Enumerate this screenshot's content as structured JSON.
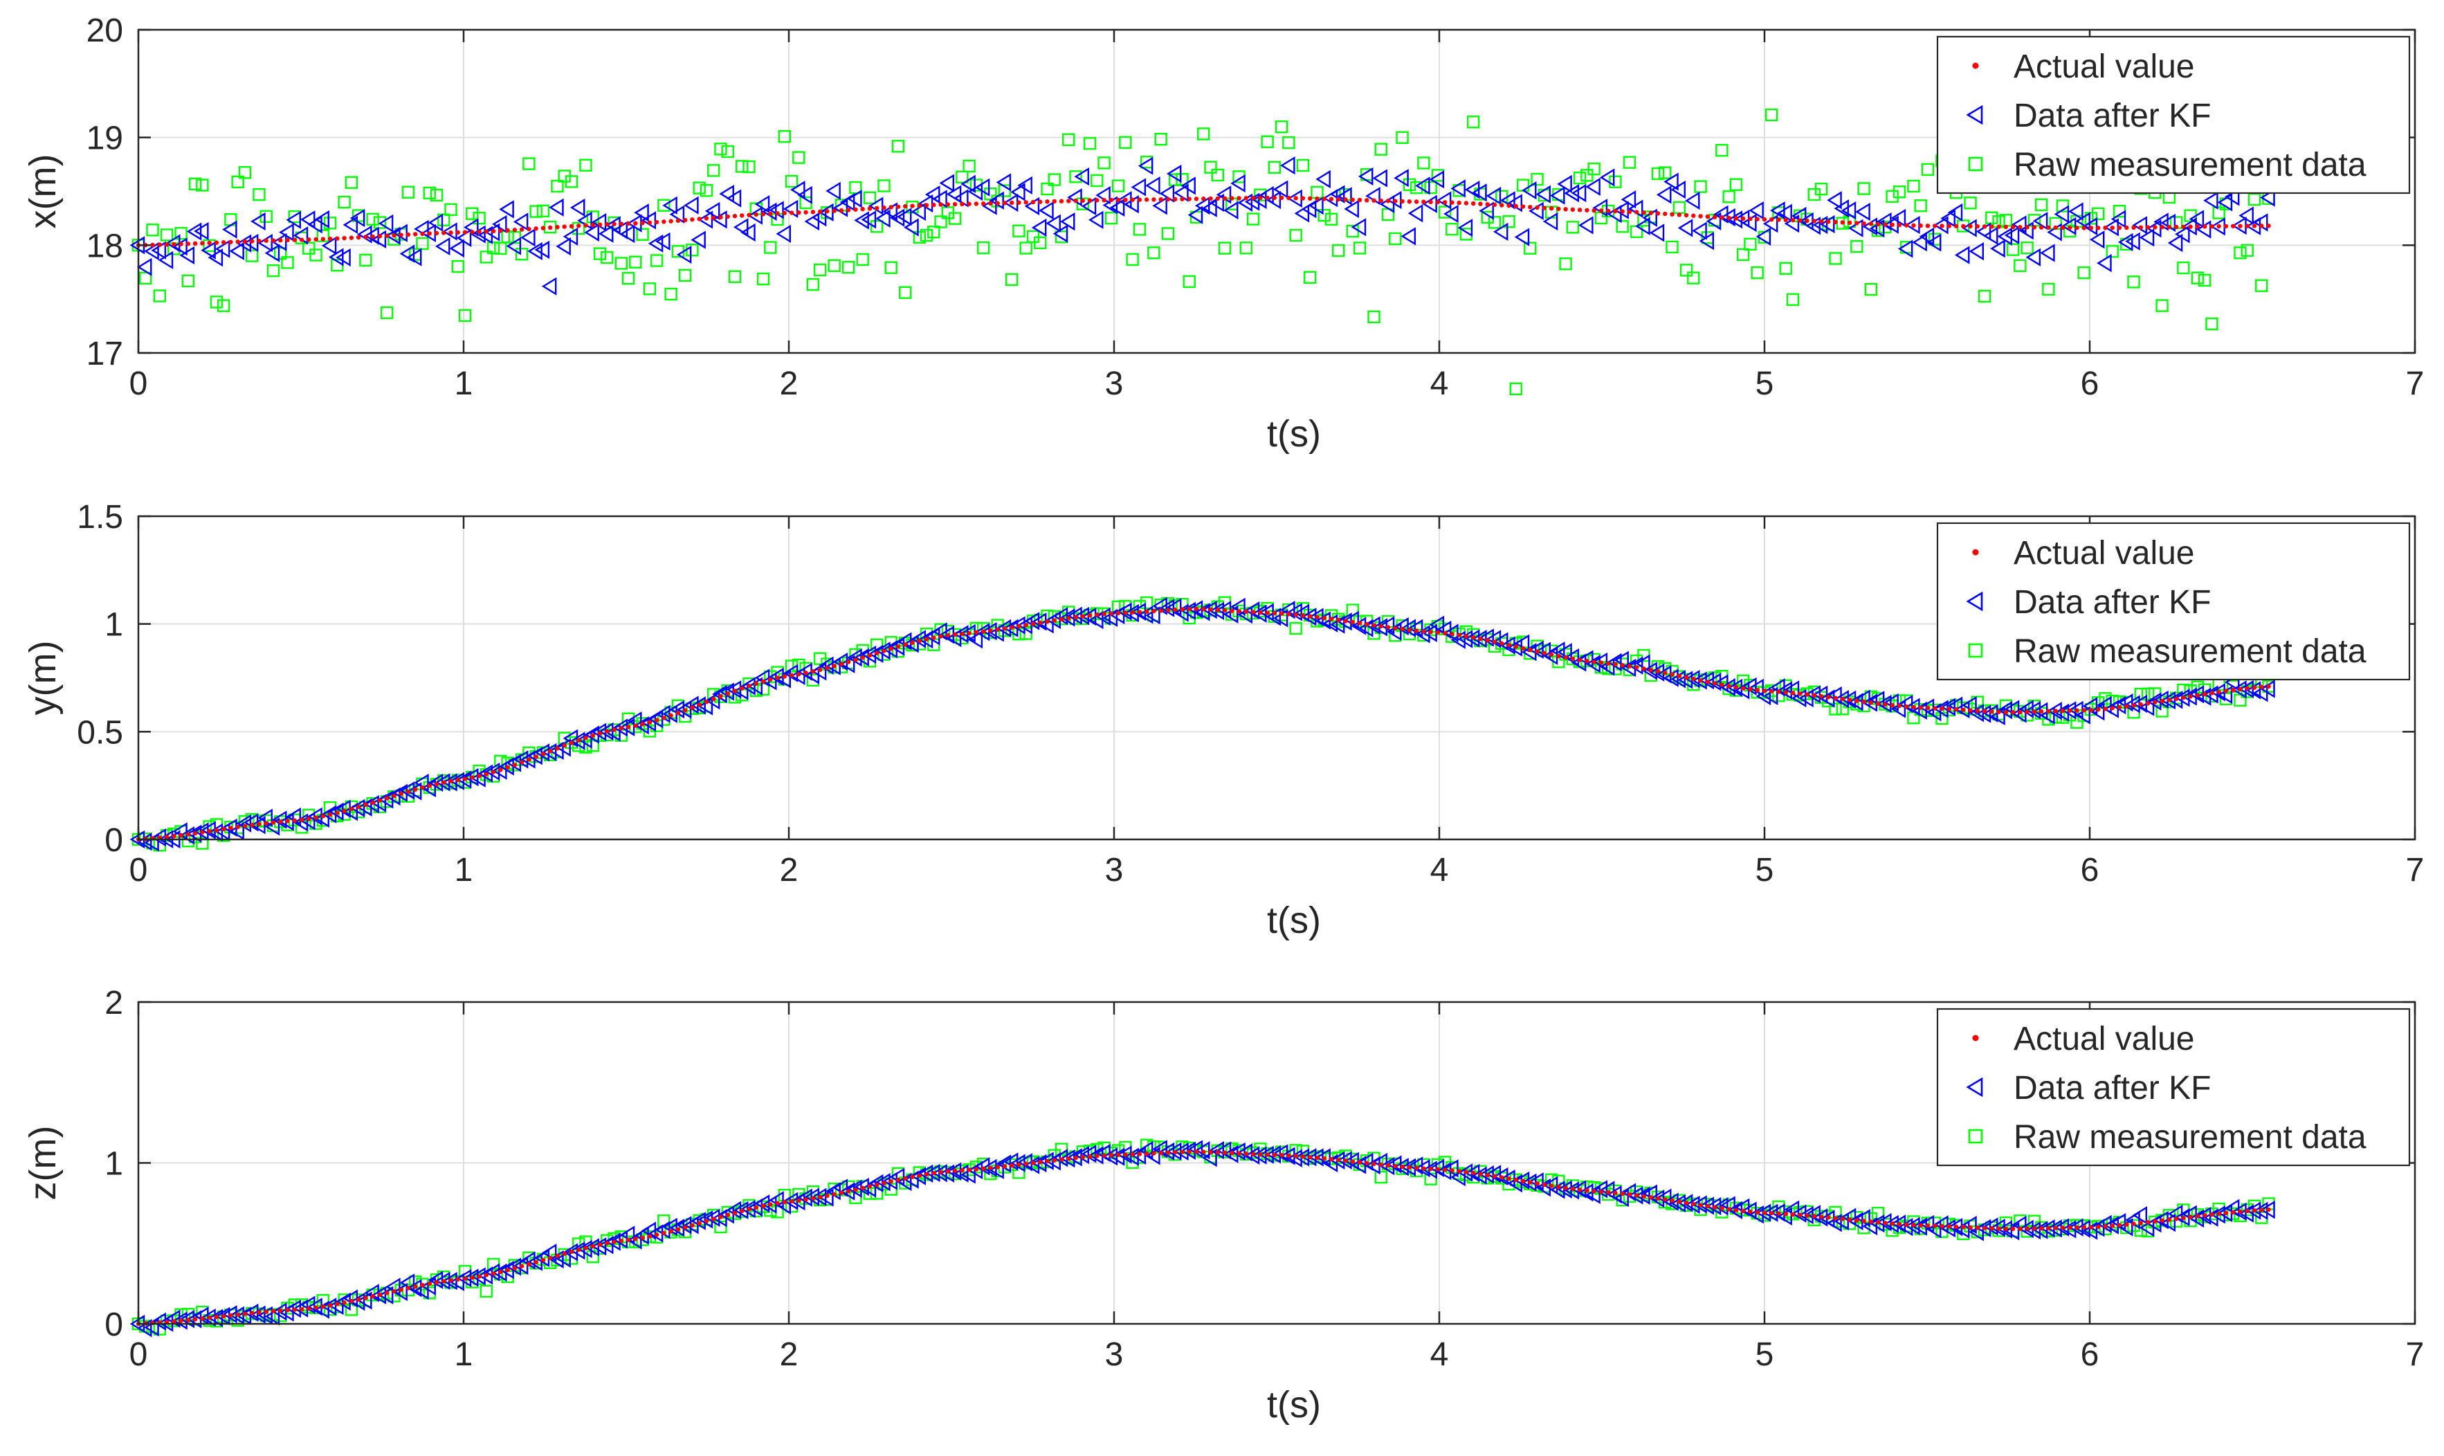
{
  "colors": {
    "actual": "#ff0000",
    "kf": "#0000ff",
    "raw": "#00ff00",
    "grid": "#dfdfdf",
    "axes": "#262626"
  },
  "chart_data": [
    {
      "type": "scatter",
      "id": "x",
      "title": "",
      "xlabel": "t(s)",
      "ylabel": "x(m)",
      "xlim": [
        0,
        7
      ],
      "ylim": [
        17,
        20
      ],
      "xticks": [
        0,
        1,
        2,
        3,
        4,
        5,
        6,
        7
      ],
      "yticks": [
        17,
        18,
        19,
        20
      ],
      "grid": true,
      "legend_position": "top-right",
      "series": [
        {
          "name": "Actual value",
          "marker": "dot",
          "color_key": "actual",
          "trajectory": [
            [
              0,
              18.0
            ],
            [
              0.5,
              18.05
            ],
            [
              1,
              18.12
            ],
            [
              1.5,
              18.2
            ],
            [
              2,
              18.3
            ],
            [
              2.5,
              18.38
            ],
            [
              3,
              18.42
            ],
            [
              3.5,
              18.44
            ],
            [
              4,
              18.4
            ],
            [
              4.5,
              18.32
            ],
            [
              5,
              18.24
            ],
            [
              5.5,
              18.18
            ],
            [
              6,
              18.16
            ],
            [
              6.55,
              18.18
            ]
          ],
          "noise_std": 0.0
        },
        {
          "name": "Data after KF",
          "marker": "triangle-left",
          "color_key": "kf",
          "trajectory": [
            [
              0,
              18.0
            ],
            [
              0.5,
              18.05
            ],
            [
              1,
              18.12
            ],
            [
              1.5,
              18.2
            ],
            [
              2,
              18.3
            ],
            [
              2.5,
              18.38
            ],
            [
              3,
              18.42
            ],
            [
              3.5,
              18.44
            ],
            [
              4,
              18.4
            ],
            [
              4.5,
              18.32
            ],
            [
              5,
              18.24
            ],
            [
              5.5,
              18.18
            ],
            [
              6,
              18.16
            ],
            [
              6.55,
              18.18
            ]
          ],
          "noise_std": 0.13
        },
        {
          "name": "Raw measurement data",
          "marker": "square",
          "color_key": "raw",
          "trajectory": [
            [
              0,
              18.0
            ],
            [
              0.5,
              18.05
            ],
            [
              1,
              18.12
            ],
            [
              1.5,
              18.2
            ],
            [
              2,
              18.3
            ],
            [
              2.5,
              18.38
            ],
            [
              3,
              18.42
            ],
            [
              3.5,
              18.44
            ],
            [
              4,
              18.4
            ],
            [
              4.5,
              18.32
            ],
            [
              5,
              18.24
            ],
            [
              5.5,
              18.18
            ],
            [
              6,
              18.16
            ],
            [
              6.55,
              18.18
            ]
          ],
          "noise_std": 0.42
        }
      ]
    },
    {
      "type": "scatter",
      "id": "y",
      "title": "",
      "xlabel": "t(s)",
      "ylabel": "y(m)",
      "xlim": [
        0,
        7
      ],
      "ylim": [
        0,
        1.5
      ],
      "xticks": [
        0,
        1,
        2,
        3,
        4,
        5,
        6,
        7
      ],
      "yticks": [
        0,
        0.5,
        1,
        1.5
      ],
      "grid": true,
      "legend_position": "top-right",
      "series": [
        {
          "name": "Actual value",
          "marker": "dot",
          "color_key": "actual",
          "trajectory": [
            [
              0,
              0.0
            ],
            [
              0.5,
              0.09
            ],
            [
              1,
              0.28
            ],
            [
              1.5,
              0.52
            ],
            [
              2,
              0.76
            ],
            [
              2.5,
              0.95
            ],
            [
              3,
              1.05
            ],
            [
              3.25,
              1.07
            ],
            [
              3.5,
              1.05
            ],
            [
              4,
              0.96
            ],
            [
              4.5,
              0.82
            ],
            [
              5,
              0.69
            ],
            [
              5.5,
              0.61
            ],
            [
              5.75,
              0.59
            ],
            [
              6,
              0.6
            ],
            [
              6.55,
              0.71
            ]
          ],
          "noise_std": 0.0
        },
        {
          "name": "Data after KF",
          "marker": "triangle-left",
          "color_key": "kf",
          "trajectory": [
            [
              0,
              0.0
            ],
            [
              0.5,
              0.09
            ],
            [
              1,
              0.28
            ],
            [
              1.5,
              0.52
            ],
            [
              2,
              0.76
            ],
            [
              2.5,
              0.95
            ],
            [
              3,
              1.05
            ],
            [
              3.25,
              1.07
            ],
            [
              3.5,
              1.05
            ],
            [
              4,
              0.96
            ],
            [
              4.5,
              0.82
            ],
            [
              5,
              0.69
            ],
            [
              5.5,
              0.61
            ],
            [
              5.75,
              0.59
            ],
            [
              6,
              0.6
            ],
            [
              6.55,
              0.71
            ]
          ],
          "noise_std": 0.012
        },
        {
          "name": "Raw measurement data",
          "marker": "square",
          "color_key": "raw",
          "trajectory": [
            [
              0,
              0.0
            ],
            [
              0.5,
              0.09
            ],
            [
              1,
              0.28
            ],
            [
              1.5,
              0.52
            ],
            [
              2,
              0.76
            ],
            [
              2.5,
              0.95
            ],
            [
              3,
              1.05
            ],
            [
              3.25,
              1.07
            ],
            [
              3.5,
              1.05
            ],
            [
              4,
              0.96
            ],
            [
              4.5,
              0.82
            ],
            [
              5,
              0.69
            ],
            [
              5.5,
              0.61
            ],
            [
              5.75,
              0.59
            ],
            [
              6,
              0.6
            ],
            [
              6.55,
              0.71
            ]
          ],
          "noise_std": 0.022
        }
      ]
    },
    {
      "type": "scatter",
      "id": "z",
      "title": "",
      "xlabel": "t(s)",
      "ylabel": "z(m)",
      "xlim": [
        0,
        7
      ],
      "ylim": [
        0,
        2
      ],
      "xticks": [
        0,
        1,
        2,
        3,
        4,
        5,
        6,
        7
      ],
      "yticks": [
        0,
        1,
        2
      ],
      "grid": true,
      "legend_position": "top-right",
      "series": [
        {
          "name": "Actual value",
          "marker": "dot",
          "color_key": "actual",
          "trajectory": [
            [
              0,
              0.0
            ],
            [
              0.5,
              0.09
            ],
            [
              1,
              0.28
            ],
            [
              1.5,
              0.52
            ],
            [
              2,
              0.76
            ],
            [
              2.5,
              0.95
            ],
            [
              3,
              1.05
            ],
            [
              3.25,
              1.07
            ],
            [
              3.5,
              1.05
            ],
            [
              4,
              0.96
            ],
            [
              4.5,
              0.82
            ],
            [
              5,
              0.69
            ],
            [
              5.5,
              0.61
            ],
            [
              5.75,
              0.59
            ],
            [
              6,
              0.6
            ],
            [
              6.55,
              0.71
            ]
          ],
          "noise_std": 0.0
        },
        {
          "name": "Data after KF",
          "marker": "triangle-left",
          "color_key": "kf",
          "trajectory": [
            [
              0,
              0.0
            ],
            [
              0.5,
              0.09
            ],
            [
              1,
              0.28
            ],
            [
              1.5,
              0.52
            ],
            [
              2,
              0.76
            ],
            [
              2.5,
              0.95
            ],
            [
              3,
              1.05
            ],
            [
              3.25,
              1.07
            ],
            [
              3.5,
              1.05
            ],
            [
              4,
              0.96
            ],
            [
              4.5,
              0.82
            ],
            [
              5,
              0.69
            ],
            [
              5.5,
              0.61
            ],
            [
              5.75,
              0.59
            ],
            [
              6,
              0.6
            ],
            [
              6.55,
              0.71
            ]
          ],
          "noise_std": 0.014
        },
        {
          "name": "Raw measurement data",
          "marker": "square",
          "color_key": "raw",
          "trajectory": [
            [
              0,
              0.0
            ],
            [
              0.5,
              0.09
            ],
            [
              1,
              0.28
            ],
            [
              1.5,
              0.52
            ],
            [
              2,
              0.76
            ],
            [
              2.5,
              0.95
            ],
            [
              3,
              1.05
            ],
            [
              3.25,
              1.07
            ],
            [
              3.5,
              1.05
            ],
            [
              4,
              0.96
            ],
            [
              4.5,
              0.82
            ],
            [
              5,
              0.69
            ],
            [
              5.5,
              0.61
            ],
            [
              5.75,
              0.59
            ],
            [
              6,
              0.6
            ],
            [
              6.55,
              0.71
            ]
          ],
          "noise_std": 0.026
        }
      ]
    }
  ]
}
